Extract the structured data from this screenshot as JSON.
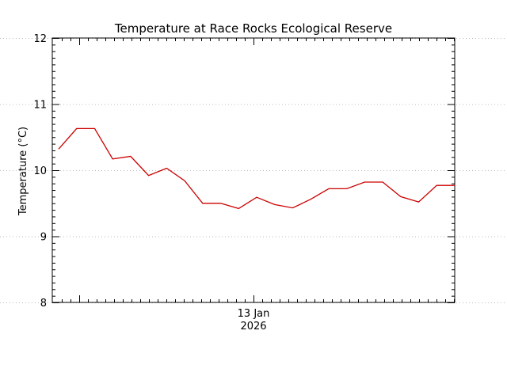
{
  "chart_data": {
    "type": "line",
    "title": "Temperature at Race Rocks Ecological Reserve",
    "xlabel": "",
    "ylabel": "Temperature (°C)",
    "ylim": [
      8,
      12
    ],
    "yticks": [
      8,
      9,
      10,
      11,
      12
    ],
    "y_tick_labels": [
      "8",
      "9",
      "10",
      "11",
      "12"
    ],
    "x_tick_label_line1": "13 Jan",
    "x_tick_label_line2": "2026",
    "grid": "horizontal-dotted",
    "line_color": "#cc0000",
    "series": [
      {
        "name": "",
        "x_hours": [
          0,
          1,
          2,
          3,
          4,
          5,
          6,
          7,
          8,
          9,
          10,
          11,
          12,
          13,
          14,
          15,
          16,
          17,
          18,
          19,
          20,
          21,
          22
        ],
        "values": [
          10.32,
          10.63,
          10.63,
          10.17,
          10.21,
          9.92,
          10.03,
          9.84,
          9.5,
          9.5,
          9.42,
          9.59,
          9.48,
          9.43,
          9.56,
          9.72,
          9.72,
          9.82,
          9.82,
          9.6,
          9.52,
          9.77,
          9.77
        ]
      }
    ]
  }
}
